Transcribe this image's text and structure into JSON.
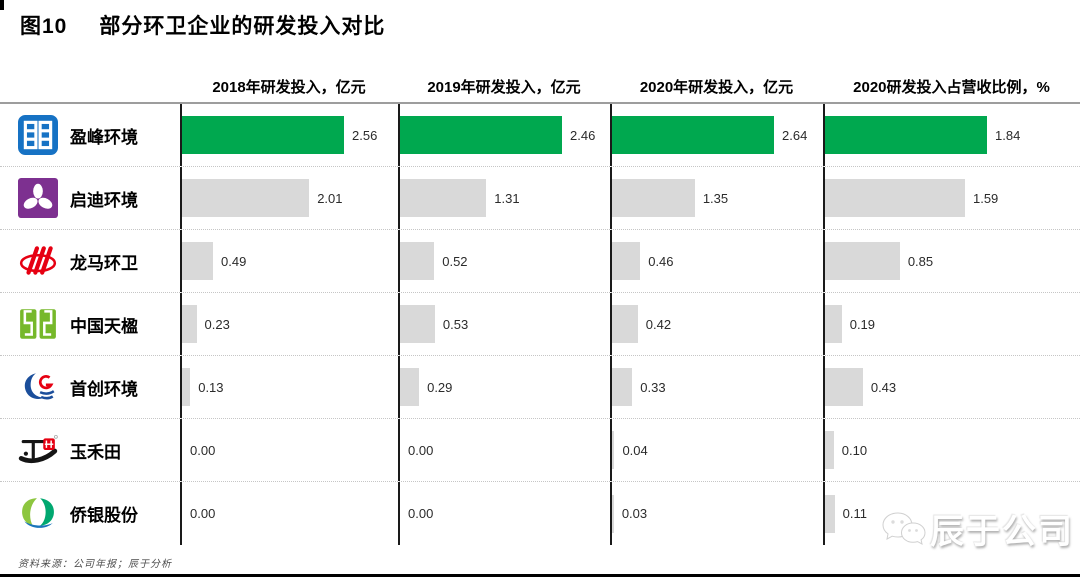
{
  "title": {
    "tag": "图10",
    "text": "部分环卫企业的研发投入对比"
  },
  "source_note": "资料来源：公司年报；辰于分析",
  "watermark": {
    "text": "辰于公司",
    "icon": "wechat-icon"
  },
  "colors": {
    "highlight_green": "#00A84F",
    "bar_gray": "#D9D9D9",
    "axis_black": "#1a1a1a",
    "header_rule_gray": "#9d9d9d"
  },
  "chart_data": {
    "type": "bar",
    "orientation": "horizontal",
    "title": "图10 部分环卫企业的研发投入对比",
    "categories": [
      "盈峰环境",
      "启迪环境",
      "龙马环卫",
      "中国天楹",
      "首创环境",
      "玉禾田",
      "侨银股份"
    ],
    "category_logos": [
      "yingfeng-logo",
      "qidi-logo",
      "longma-logo",
      "tianying-logo",
      "shouchuang-logo",
      "yuhetian-logo",
      "qiaoyin-logo"
    ],
    "highlighted_category": "盈峰环境",
    "series": [
      {
        "name": "2018年研发投入，亿元",
        "values": [
          2.56,
          2.01,
          0.49,
          0.23,
          0.13,
          0.0,
          0.0
        ]
      },
      {
        "name": "2019年研发投入，亿元",
        "values": [
          2.46,
          1.31,
          0.52,
          0.53,
          0.29,
          0.0,
          0.0
        ]
      },
      {
        "name": "2020年研发投入，亿元",
        "values": [
          2.64,
          1.35,
          0.46,
          0.42,
          0.33,
          0.04,
          0.03
        ]
      },
      {
        "name": "2020研发投入占营收比例，%",
        "values": [
          1.84,
          1.59,
          0.85,
          0.19,
          0.43,
          0.1,
          0.11
        ]
      }
    ],
    "value_label_format": "two-decimals",
    "legend": "none",
    "grid": "off",
    "each_column_scaled_independently": true
  }
}
